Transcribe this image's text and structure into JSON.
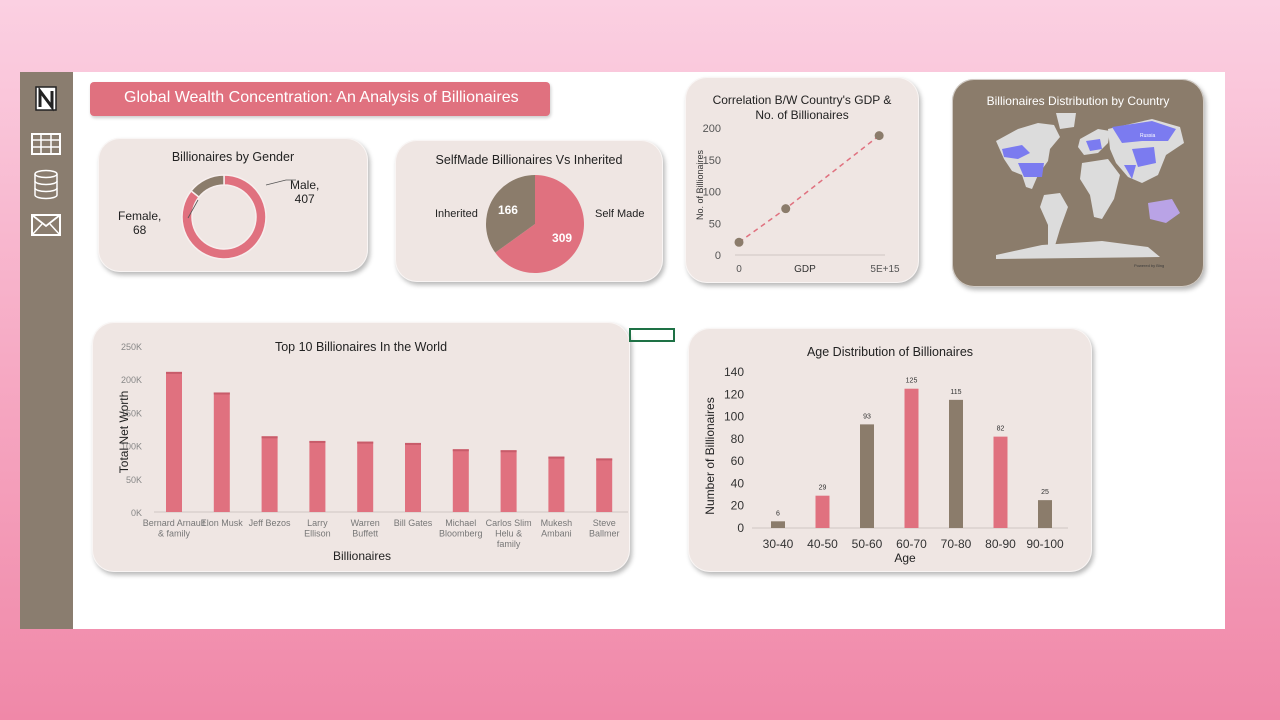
{
  "dashboard": {
    "title": "Global Wealth Concentration: An Analysis of Billionaires"
  },
  "sidebar": {
    "items": [
      {
        "icon": "notion-logo-icon"
      },
      {
        "icon": "table-icon"
      },
      {
        "icon": "database-icon"
      },
      {
        "icon": "mail-icon"
      }
    ]
  },
  "colors": {
    "pink": "#e0717f",
    "brown": "#8b7c6b",
    "panel": "#efe6e3",
    "map_highlight": "#7b7bf0"
  },
  "gender": {
    "title": "Billionaires by Gender",
    "male_label": "Male,",
    "male_value": "407",
    "female_label": "Female,",
    "female_value": "68"
  },
  "selfmade": {
    "title": "SelfMade Billionaires Vs Inherited",
    "inherited_label": "Inherited",
    "inherited_value": "166",
    "selfmade_label": "Self Made",
    "selfmade_value": "309"
  },
  "gdp": {
    "title_line1": "Correlation B/W Country's GDP &",
    "title_line2": "No. of Billionaires",
    "y_label": "No. of Billionaires",
    "y_ticks": [
      "200",
      "150",
      "100",
      "50",
      "0"
    ],
    "x_tick_start": "0",
    "x_label": "GDP",
    "x_tick_end": "5E+15"
  },
  "map": {
    "title": "Billionaires Distribution by Country",
    "country_label": "Russia",
    "credit": "Powered by Bing"
  },
  "chart_data": [
    {
      "type": "pie",
      "title": "Billionaires by Gender",
      "categories": [
        "Male",
        "Female"
      ],
      "values": [
        407,
        68
      ]
    },
    {
      "type": "pie",
      "title": "SelfMade Billionaires Vs Inherited",
      "categories": [
        "Self Made",
        "Inherited"
      ],
      "values": [
        309,
        166
      ]
    },
    {
      "type": "line",
      "title": "Correlation B/W Country's GDP & No. of Billionaires",
      "xlabel": "GDP",
      "ylabel": "No. of Billionaires",
      "ylim": [
        0,
        200
      ],
      "x": [
        0,
        1600000000000000.0,
        4800000000000000.0
      ],
      "y": [
        20,
        73,
        188
      ]
    },
    {
      "type": "bar",
      "title": "Top 10 Billionaires In the World",
      "xlabel": "Billionaires",
      "ylabel": "Total Net Worth",
      "ylim": [
        0,
        250000
      ],
      "y_ticks": [
        "250K",
        "200K",
        "150K",
        "100K",
        "50K",
        "0K"
      ],
      "categories": [
        "Bernard Arnault & family",
        "Elon Musk",
        "Jeff Bezos",
        "Larry Ellison",
        "Warren Buffett",
        "Bill Gates",
        "Michael Bloomberg",
        "Carlos Slim Helu & family",
        "Mukesh Ambani",
        "Steve Ballmer"
      ],
      "values": [
        211000,
        180000,
        114000,
        107000,
        106000,
        104000,
        94500,
        93000,
        83400,
        80700
      ]
    },
    {
      "type": "bar",
      "title": "Age Distribution of Billionaires",
      "xlabel": "Age",
      "ylabel": "Number of Billionaires",
      "ylim": [
        0,
        140
      ],
      "y_ticks": [
        "140",
        "120",
        "100",
        "80",
        "60",
        "40",
        "20",
        "0"
      ],
      "categories": [
        "30-40",
        "40-50",
        "50-60",
        "60-70",
        "70-80",
        "80-90",
        "90-100"
      ],
      "values": [
        6,
        29,
        93,
        125,
        115,
        82,
        25
      ]
    }
  ]
}
